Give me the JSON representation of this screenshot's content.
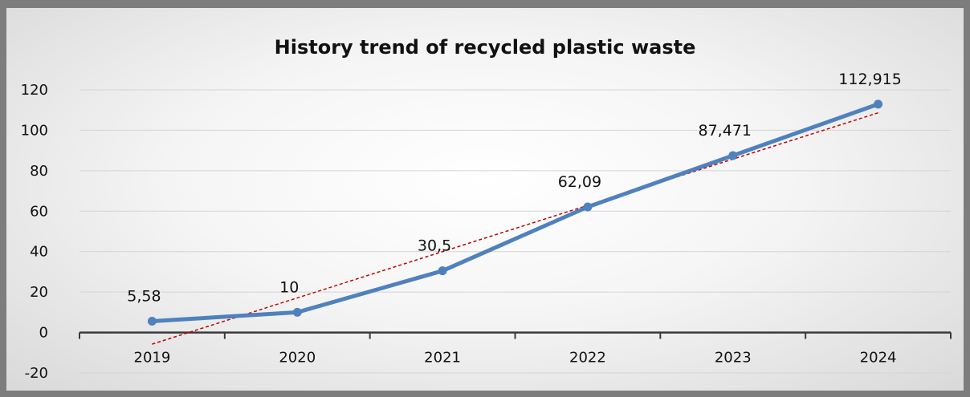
{
  "chart_data": {
    "type": "line",
    "title": "History trend of recycled plastic waste",
    "xlabel": "",
    "ylabel": "",
    "categories": [
      "2019",
      "2020",
      "2021",
      "2022",
      "2023",
      "2024"
    ],
    "series": [
      {
        "values": [
          5.58,
          10,
          30.5,
          62.09,
          87.471,
          112.915
        ],
        "labels": [
          "5,58",
          "10",
          "30,5",
          "62,09",
          "87,471",
          "112,915"
        ],
        "color": "#4f81bd"
      }
    ],
    "trendline": {
      "type": "linear",
      "color": "#c00000",
      "style": "dashed"
    },
    "ylim": [
      -20,
      120
    ],
    "yticks": [
      -20,
      0,
      20,
      40,
      60,
      80,
      100,
      120
    ],
    "grid": true,
    "legend": "none"
  }
}
